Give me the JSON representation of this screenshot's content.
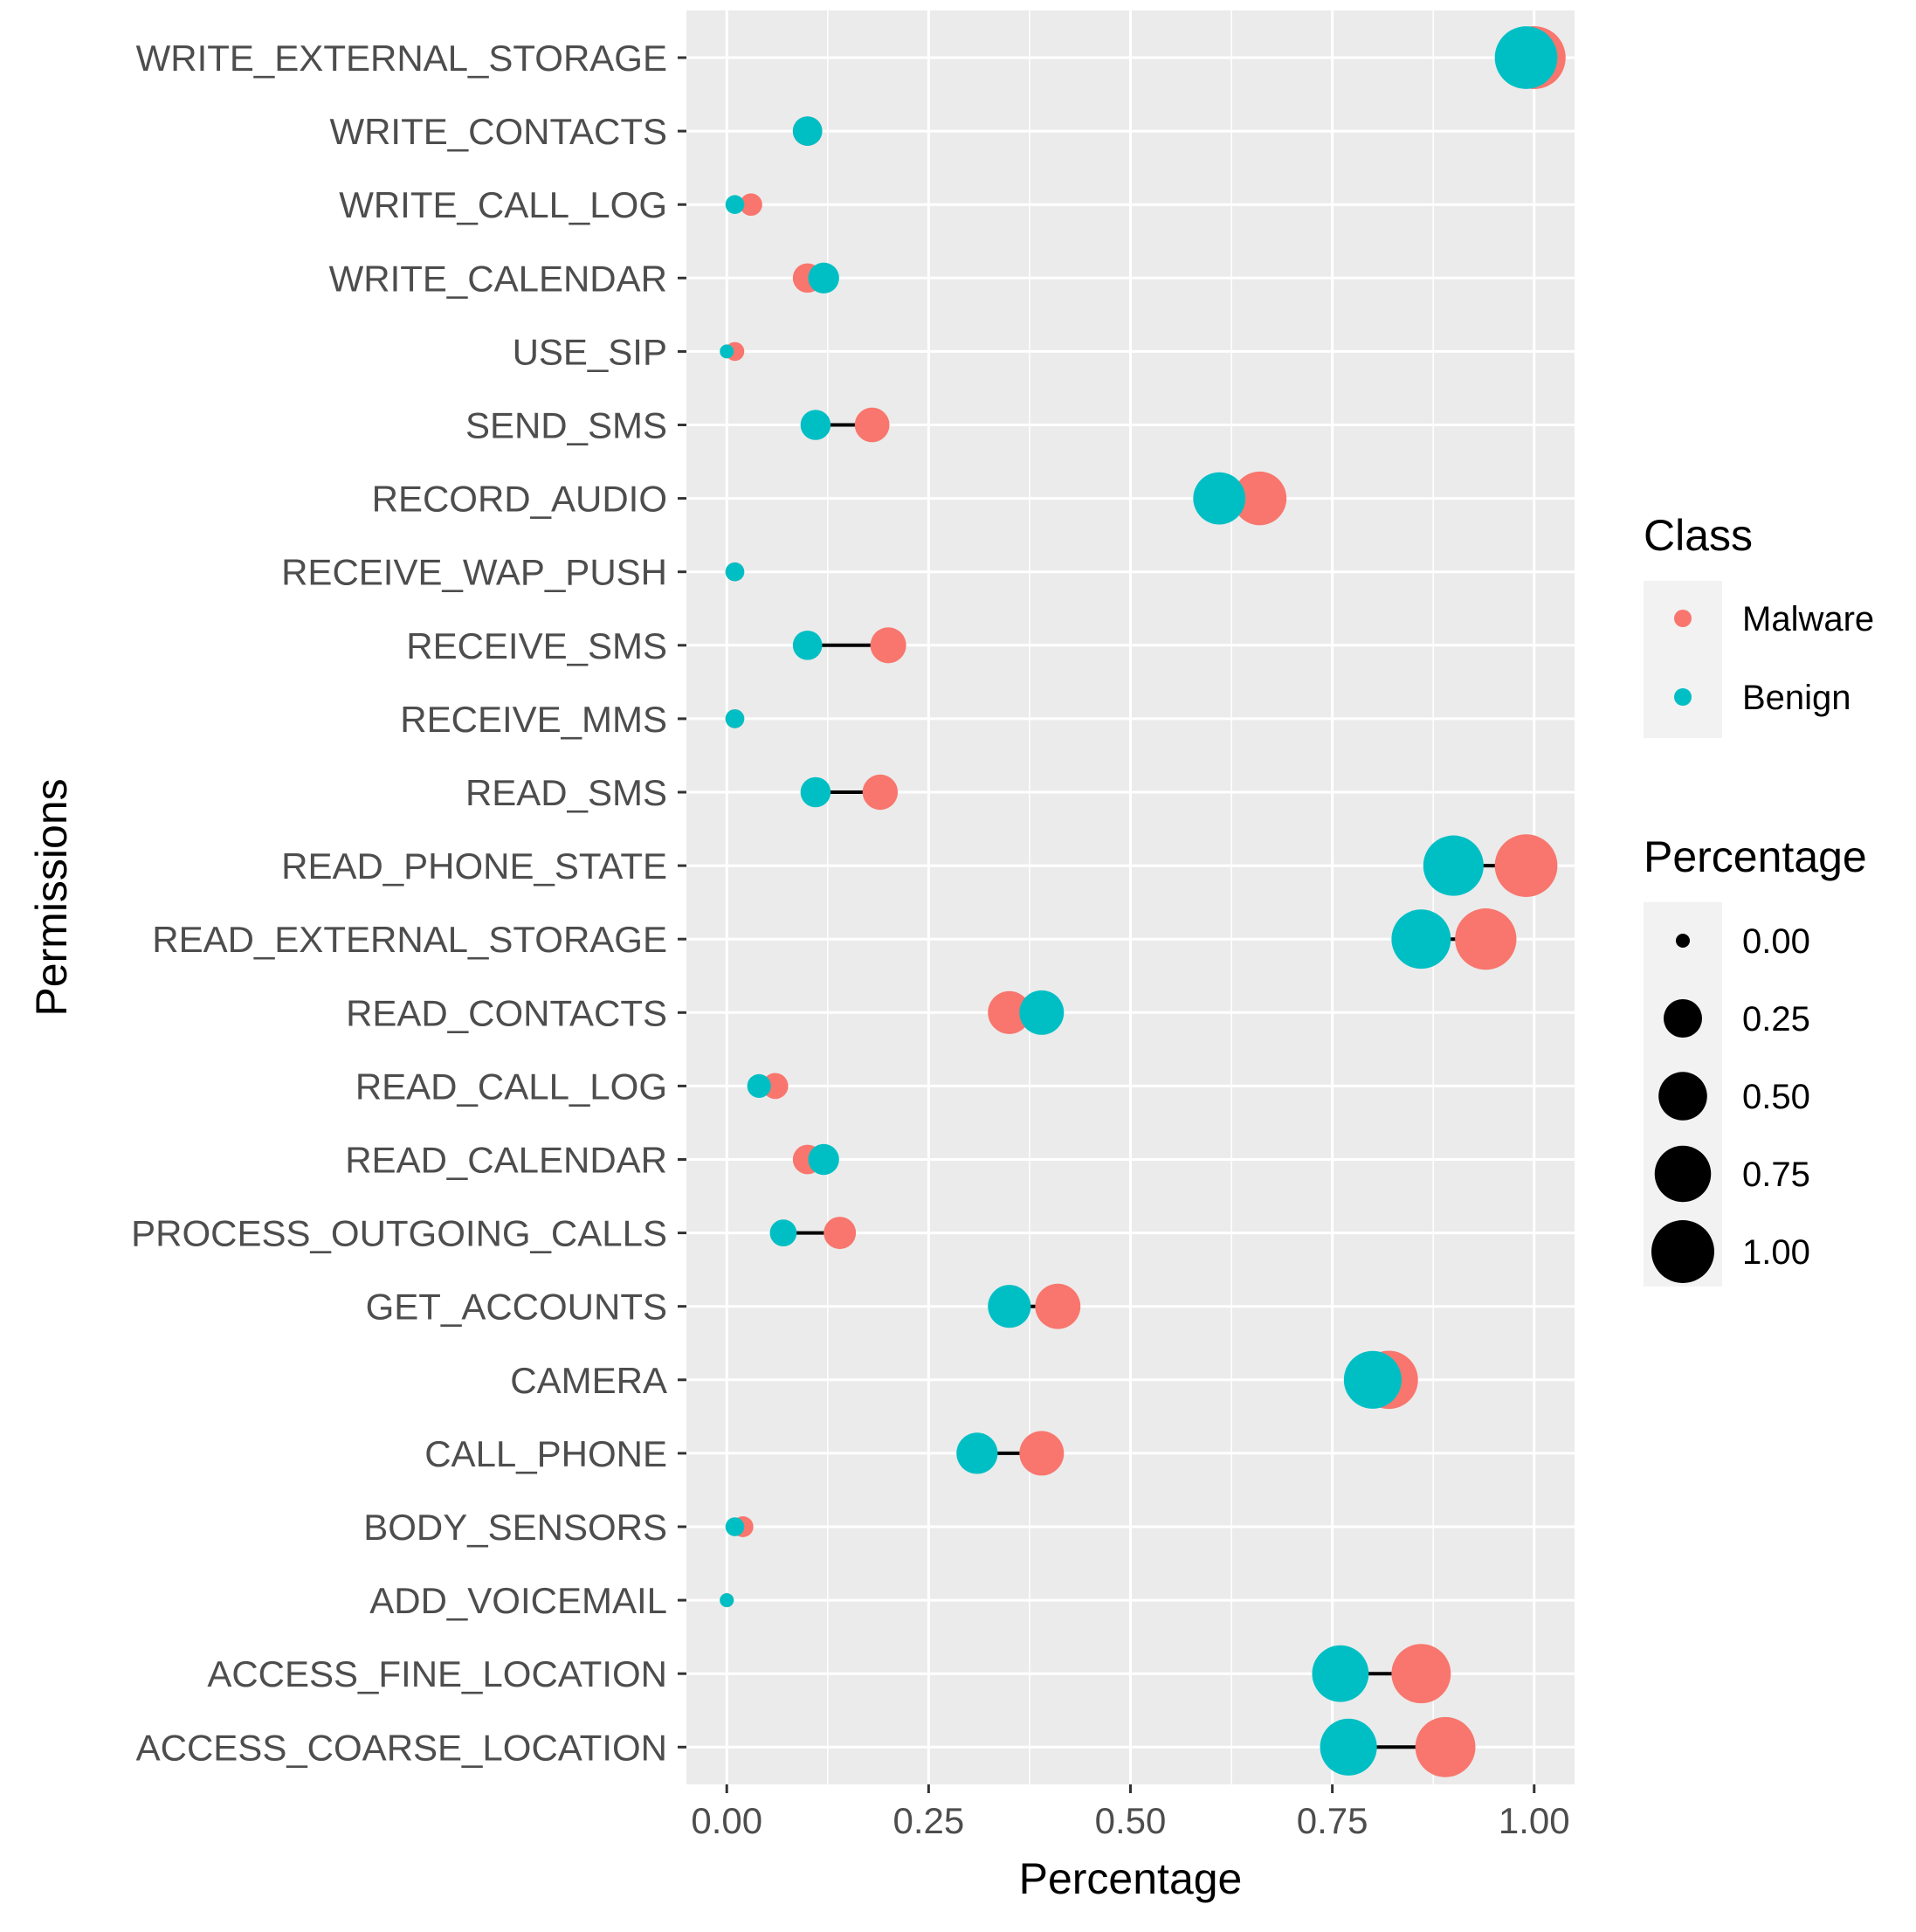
{
  "chart_data": {
    "type": "dumbbell",
    "xlabel": "Percentage",
    "ylabel": "Permissions",
    "xlim": [
      -0.05,
      1.05
    ],
    "x_ticks": [
      0.0,
      0.25,
      0.5,
      0.75,
      1.0
    ],
    "x_tick_labels": [
      "0.00",
      "0.25",
      "0.50",
      "0.75",
      "1.00"
    ],
    "series": [
      {
        "name": "Malware",
        "color": "#F8766D"
      },
      {
        "name": "Benign",
        "color": "#00BFC4"
      }
    ],
    "size_legend": {
      "title": "Percentage",
      "values": [
        0.0,
        0.25,
        0.5,
        0.75,
        1.0
      ],
      "labels": [
        "0.00",
        "0.25",
        "0.50",
        "0.75",
        "1.00"
      ]
    },
    "color_legend_title": "Class",
    "categories": [
      {
        "label": "WRITE_EXTERNAL_STORAGE",
        "malware": 1.0,
        "benign": 0.99
      },
      {
        "label": "WRITE_CONTACTS",
        "malware": 0.1,
        "benign": 0.1
      },
      {
        "label": "WRITE_CALL_LOG",
        "malware": 0.03,
        "benign": 0.01
      },
      {
        "label": "WRITE_CALENDAR",
        "malware": 0.1,
        "benign": 0.12
      },
      {
        "label": "USE_SIP",
        "malware": 0.01,
        "benign": 0.0
      },
      {
        "label": "SEND_SMS",
        "malware": 0.18,
        "benign": 0.11
      },
      {
        "label": "RECORD_AUDIO",
        "malware": 0.66,
        "benign": 0.61
      },
      {
        "label": "RECEIVE_WAP_PUSH",
        "malware": 0.01,
        "benign": 0.01
      },
      {
        "label": "RECEIVE_SMS",
        "malware": 0.2,
        "benign": 0.1
      },
      {
        "label": "RECEIVE_MMS",
        "malware": 0.01,
        "benign": 0.01
      },
      {
        "label": "READ_SMS",
        "malware": 0.19,
        "benign": 0.11
      },
      {
        "label": "READ_PHONE_STATE",
        "malware": 0.99,
        "benign": 0.9
      },
      {
        "label": "READ_EXTERNAL_STORAGE",
        "malware": 0.94,
        "benign": 0.86
      },
      {
        "label": "READ_CONTACTS",
        "malware": 0.35,
        "benign": 0.39
      },
      {
        "label": "READ_CALL_LOG",
        "malware": 0.06,
        "benign": 0.04
      },
      {
        "label": "READ_CALENDAR",
        "malware": 0.1,
        "benign": 0.12
      },
      {
        "label": "PROCESS_OUTGOING_CALLS",
        "malware": 0.14,
        "benign": 0.07
      },
      {
        "label": "GET_ACCOUNTS",
        "malware": 0.41,
        "benign": 0.35
      },
      {
        "label": "CAMERA",
        "malware": 0.82,
        "benign": 0.8
      },
      {
        "label": "CALL_PHONE",
        "malware": 0.39,
        "benign": 0.31
      },
      {
        "label": "BODY_SENSORS",
        "malware": 0.02,
        "benign": 0.01
      },
      {
        "label": "ADD_VOICEMAIL",
        "malware": 0.0,
        "benign": 0.0
      },
      {
        "label": "ACCESS_FINE_LOCATION",
        "malware": 0.86,
        "benign": 0.76
      },
      {
        "label": "ACCESS_COARSE_LOCATION",
        "malware": 0.89,
        "benign": 0.77
      }
    ]
  }
}
